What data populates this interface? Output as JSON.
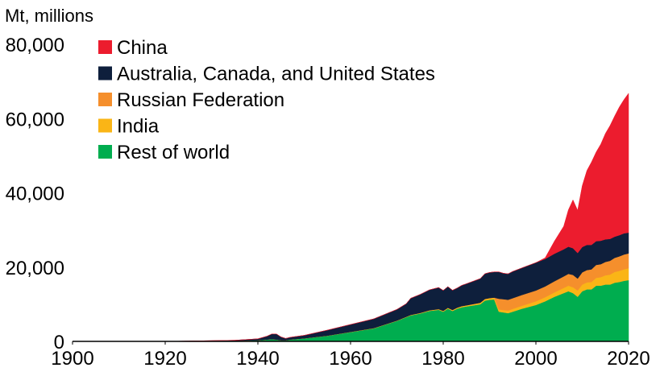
{
  "chart_data": {
    "type": "area",
    "stacked": true,
    "title": "",
    "unit_label": "Mt, millions",
    "xlabel": "",
    "ylabel": "",
    "xlim": [
      1900,
      2020
    ],
    "ylim": [
      0,
      80000
    ],
    "x_ticks": [
      "1900",
      "1920",
      "1940",
      "1960",
      "1980",
      "2000",
      "2020"
    ],
    "y_ticks": [
      "0",
      "20,000",
      "40,000",
      "60,000",
      "80,000"
    ],
    "grid": false,
    "legend_position": "top-left",
    "legend_order": [
      "China",
      "Australia, Canada, and United States",
      "Russian Federation",
      "India",
      "Rest of world"
    ],
    "x": [
      1900,
      1920,
      1930,
      1935,
      1940,
      1942,
      1943,
      1944,
      1945,
      1946,
      1947,
      1950,
      1955,
      1960,
      1965,
      1970,
      1972,
      1973,
      1975,
      1977,
      1979,
      1980,
      1981,
      1982,
      1983,
      1984,
      1985,
      1988,
      1989,
      1990,
      1991,
      1992,
      1993,
      1994,
      1995,
      1997,
      2000,
      2002,
      2004,
      2006,
      2007,
      2008,
      2009,
      2010,
      2011,
      2012,
      2013,
      2014,
      2015,
      2016,
      2017,
      2018,
      2019,
      2020
    ],
    "series": [
      {
        "name": "Rest of world",
        "color": "#00ad4f",
        "values": [
          0,
          0,
          100,
          150,
          300,
          500,
          600,
          500,
          300,
          300,
          500,
          800,
          1500,
          2500,
          3500,
          5500,
          6500,
          7000,
          7500,
          8200,
          8500,
          8000,
          8800,
          8200,
          8800,
          9200,
          9400,
          10000,
          11000,
          11200,
          11300,
          8000,
          7800,
          7600,
          8000,
          8800,
          9800,
          10800,
          12000,
          13000,
          13500,
          13000,
          12000,
          13500,
          14000,
          14000,
          15000,
          15000,
          15300,
          15300,
          15800,
          16000,
          16300,
          16500
        ]
      },
      {
        "name": "India",
        "color": "#fab516",
        "values": [
          0,
          0,
          0,
          0,
          0,
          0,
          0,
          0,
          0,
          0,
          0,
          20,
          30,
          50,
          80,
          100,
          120,
          130,
          150,
          170,
          200,
          220,
          240,
          260,
          280,
          300,
          320,
          400,
          430,
          460,
          500,
          600,
          650,
          700,
          750,
          800,
          1000,
          1100,
          1200,
          1400,
          1500,
          1600,
          1700,
          1800,
          1900,
          2000,
          2100,
          2300,
          2500,
          2700,
          2900,
          3000,
          3100,
          3200
        ]
      },
      {
        "name": "Russian Federation",
        "color": "#f58f2c",
        "values": [
          0,
          0,
          0,
          0,
          0,
          0,
          0,
          0,
          0,
          0,
          0,
          0,
          0,
          0,
          0,
          0,
          0,
          0,
          0,
          0,
          0,
          0,
          0,
          0,
          0,
          0,
          0,
          0,
          0,
          0,
          0,
          2900,
          2900,
          2900,
          2900,
          2900,
          2900,
          2900,
          3000,
          3100,
          3200,
          3300,
          3200,
          3300,
          3300,
          3400,
          3500,
          3500,
          3600,
          3700,
          3800,
          3900,
          4000,
          4000
        ]
      },
      {
        "name": "Australia, Canada, and United States",
        "color": "#0e1f3c",
        "values": [
          0,
          0,
          100,
          150,
          400,
          900,
          1400,
          1500,
          900,
          500,
          600,
          800,
          1500,
          2000,
          2500,
          3000,
          3500,
          4500,
          5000,
          5500,
          5800,
          5500,
          5700,
          5300,
          5300,
          5600,
          5800,
          6500,
          6800,
          6900,
          6900,
          7200,
          7000,
          7000,
          7200,
          7300,
          7500,
          7400,
          7400,
          7300,
          7300,
          7200,
          6900,
          6800,
          6800,
          6600,
          6400,
          6300,
          6100,
          5900,
          5700,
          5700,
          5700,
          5600
        ]
      },
      {
        "name": "China",
        "color": "#ec1c2e",
        "values": [
          0,
          0,
          0,
          0,
          0,
          0,
          0,
          0,
          0,
          0,
          0,
          0,
          0,
          0,
          0,
          0,
          0,
          0,
          0,
          0,
          0,
          0,
          0,
          0,
          0,
          0,
          0,
          0,
          0,
          0,
          0,
          0,
          0,
          0,
          0,
          0,
          0,
          300,
          3400,
          6200,
          9900,
          13000,
          11500,
          16500,
          20000,
          22300,
          24000,
          26000,
          28500,
          30500,
          32500,
          34500,
          36000,
          37500
        ]
      }
    ]
  }
}
